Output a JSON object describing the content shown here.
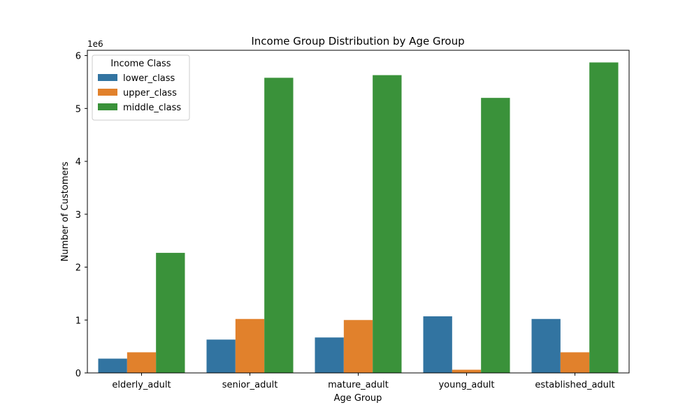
{
  "chart_data": {
    "type": "bar",
    "title": "Income Group Distribution by Age Group",
    "xlabel": "Age Group",
    "ylabel": "Number of Customers",
    "y_offset_label": "1e6",
    "y_multiplier": 1000000,
    "ylim": [
      0,
      6100000
    ],
    "yticks": [
      0,
      1000000,
      2000000,
      3000000,
      4000000,
      5000000,
      6000000
    ],
    "ytick_labels": [
      "0",
      "1",
      "2",
      "3",
      "4",
      "5",
      "6"
    ],
    "grid": false,
    "legend": {
      "title": "Income Class",
      "position": "top-left"
    },
    "categories": [
      "elderly_adult",
      "senior_adult",
      "mature_adult",
      "young_adult",
      "established_adult"
    ],
    "series": [
      {
        "name": "lower_class",
        "color": "#3274a1",
        "values": [
          270000,
          630000,
          670000,
          1070000,
          1020000
        ]
      },
      {
        "name": "upper_class",
        "color": "#e1812c",
        "values": [
          390000,
          1020000,
          1000000,
          60000,
          390000
        ]
      },
      {
        "name": "middle_class",
        "color": "#3a923a",
        "values": [
          2270000,
          5580000,
          5630000,
          5200000,
          5870000
        ]
      }
    ]
  }
}
